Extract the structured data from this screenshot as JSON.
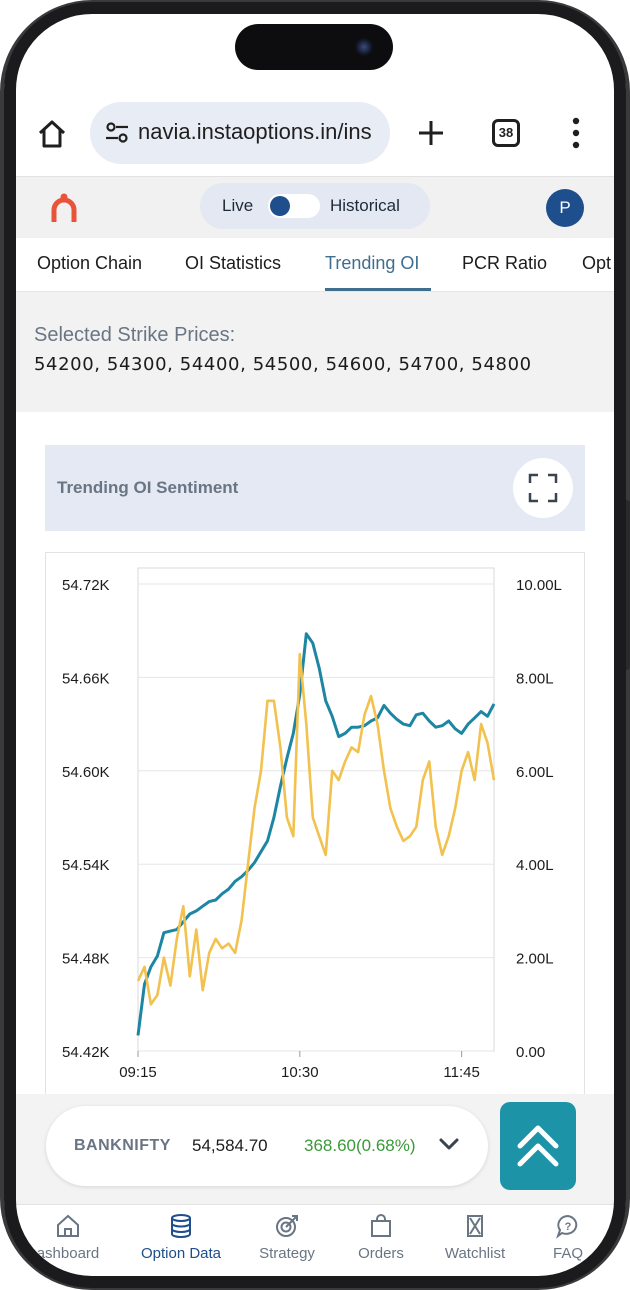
{
  "browser": {
    "url": "navia.instaoptions.in/ins",
    "tab_count": "38",
    "icons": [
      "home-icon",
      "site-settings-icon",
      "new-tab-icon",
      "tabs-icon",
      "more-menu-icon"
    ]
  },
  "header": {
    "live_label": "Live",
    "historical_label": "Historical",
    "avatar_initial": "P"
  },
  "tabs": [
    {
      "label": "Option Chain"
    },
    {
      "label": "OI Statistics"
    },
    {
      "label": "Trending OI"
    },
    {
      "label": "PCR Ratio"
    },
    {
      "label": "Opt"
    }
  ],
  "active_tab": "Trending OI",
  "strikes": {
    "title": "Selected Strike Prices:",
    "values": "54200, 54300, 54400, 54500, 54600, 54700, 54800"
  },
  "chart_card": {
    "title": "Trending OI Sentiment"
  },
  "chart_data": {
    "type": "line",
    "x_ticks": [
      "09:15",
      "10:30",
      "11:45"
    ],
    "y_left_ticks": [
      "54.72K",
      "54.66K",
      "54.60K",
      "54.54K",
      "54.48K",
      "54.42K"
    ],
    "y_right_ticks": [
      "10.00L",
      "8.00L",
      "6.00L",
      "4.00L",
      "2.00L",
      "0.00"
    ],
    "y_left_range": [
      54420,
      54720
    ],
    "y_right_range": [
      0,
      1000000
    ],
    "x_range": [
      "09:15",
      "12:00"
    ],
    "grid": true,
    "colors": {
      "price": "#1d86a3",
      "oi": "#f2c14e"
    },
    "series": [
      {
        "axis": "left",
        "color": "#1d86a3",
        "x": [
          "09:15",
          "09:18",
          "09:21",
          "09:24",
          "09:27",
          "09:30",
          "09:33",
          "09:36",
          "09:39",
          "09:42",
          "09:45",
          "09:48",
          "09:51",
          "09:54",
          "09:57",
          "10:00",
          "10:03",
          "10:06",
          "10:09",
          "10:12",
          "10:15",
          "10:18",
          "10:21",
          "10:24",
          "10:27",
          "10:30",
          "10:33",
          "10:36",
          "10:39",
          "10:42",
          "10:45",
          "10:48",
          "10:51",
          "10:54",
          "10:57",
          "11:00",
          "11:03",
          "11:06",
          "11:09",
          "11:12",
          "11:15",
          "11:18",
          "11:21",
          "11:24",
          "11:27",
          "11:30",
          "11:33",
          "11:36",
          "11:39",
          "11:42",
          "11:45",
          "11:48",
          "11:51",
          "11:54",
          "11:57",
          "12:00"
        ],
        "values": [
          54430,
          54463,
          54474,
          54481,
          54496,
          54497,
          54498,
          54503,
          54508,
          54510,
          54513,
          54516,
          54517,
          54521,
          54524,
          54529,
          54532,
          54536,
          54541,
          54548,
          54555,
          54570,
          54590,
          54608,
          54624,
          54649,
          54688,
          54682,
          54666,
          54645,
          54635,
          54622,
          54624,
          54628,
          54628,
          54629,
          54632,
          54634,
          54642,
          54637,
          54633,
          54630,
          54629,
          54636,
          54637,
          54632,
          54628,
          54629,
          54632,
          54627,
          54624,
          54630,
          54634,
          54638,
          54635,
          54643
        ],
        "label": ""
      },
      {
        "axis": "right",
        "color": "#f2c14e",
        "x": [
          "09:15",
          "09:18",
          "09:21",
          "09:24",
          "09:27",
          "09:30",
          "09:33",
          "09:36",
          "09:39",
          "09:42",
          "09:45",
          "09:48",
          "09:51",
          "09:54",
          "09:57",
          "10:00",
          "10:03",
          "10:06",
          "10:09",
          "10:12",
          "10:15",
          "10:18",
          "10:21",
          "10:24",
          "10:27",
          "10:30",
          "10:33",
          "10:36",
          "10:39",
          "10:42",
          "10:45",
          "10:48",
          "10:51",
          "10:54",
          "10:57",
          "11:00",
          "11:03",
          "11:06",
          "11:09",
          "11:12",
          "11:15",
          "11:18",
          "11:21",
          "11:24",
          "11:27",
          "11:30",
          "11:33",
          "11:36",
          "11:39",
          "11:42",
          "11:45",
          "11:48",
          "11:51",
          "11:54",
          "11:57",
          "12:00"
        ],
        "values": [
          150000,
          180000,
          100000,
          120000,
          200000,
          140000,
          240000,
          310000,
          160000,
          260000,
          130000,
          210000,
          240000,
          220000,
          230000,
          210000,
          280000,
          400000,
          520000,
          600000,
          750000,
          750000,
          650000,
          500000,
          460000,
          850000,
          700000,
          500000,
          460000,
          420000,
          600000,
          580000,
          620000,
          650000,
          640000,
          720000,
          760000,
          700000,
          600000,
          520000,
          480000,
          450000,
          460000,
          480000,
          580000,
          620000,
          480000,
          420000,
          460000,
          520000,
          600000,
          640000,
          580000,
          700000,
          660000,
          580000
        ],
        "label": ""
      }
    ]
  },
  "ticker": {
    "symbol": "BANKNIFTY",
    "price": "54,584.70",
    "change": "368.60(0.68%)"
  },
  "bottom_nav": [
    {
      "label": "ashboard",
      "icon": "dashboard-home-icon"
    },
    {
      "label": "Option Data",
      "icon": "database-icon"
    },
    {
      "label": "Strategy",
      "icon": "target-icon"
    },
    {
      "label": "Orders",
      "icon": "shopping-bag-icon"
    },
    {
      "label": "Watchlist",
      "icon": "hourglass-icon"
    },
    {
      "label": "FAQ",
      "icon": "help-chat-icon"
    }
  ]
}
